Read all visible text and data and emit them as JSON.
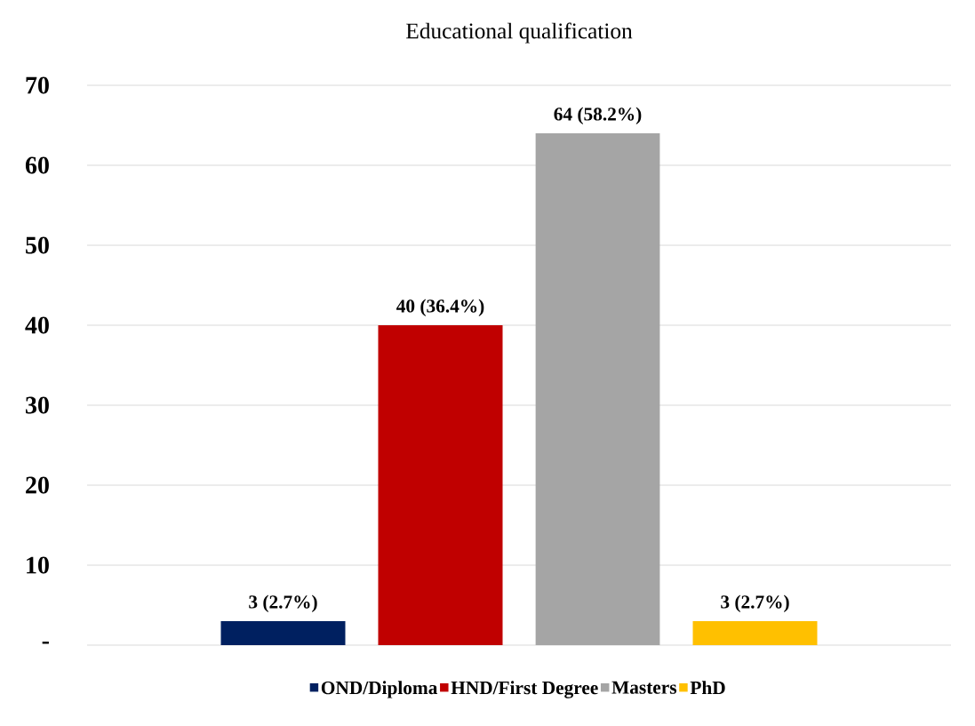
{
  "chart_data": {
    "type": "bar",
    "title": "Educational qualification",
    "categories": [
      null
    ],
    "series": [
      {
        "name": "OND/Diploma",
        "color": "#002060",
        "values": [
          3
        ],
        "value_labels": [
          "3 (2.7%)"
        ]
      },
      {
        "name": "HND/First Degree",
        "color": "#c00000",
        "values": [
          40
        ],
        "value_labels": [
          "40 (36.4%)"
        ]
      },
      {
        "name": "Masters",
        "color": "#a5a5a5",
        "values": [
          64
        ],
        "value_labels": [
          "64 (58.2%)"
        ]
      },
      {
        "name": "PhD",
        "color": "#ffc000",
        "values": [
          3
        ],
        "value_labels": [
          "3 (2.7%)"
        ]
      }
    ],
    "ylim": [
      0,
      70
    ],
    "yticks": [
      {
        "value": 0,
        "label": "-"
      },
      10,
      20,
      30,
      40,
      50,
      60,
      70
    ],
    "grid": "y",
    "legend": "bottom"
  }
}
